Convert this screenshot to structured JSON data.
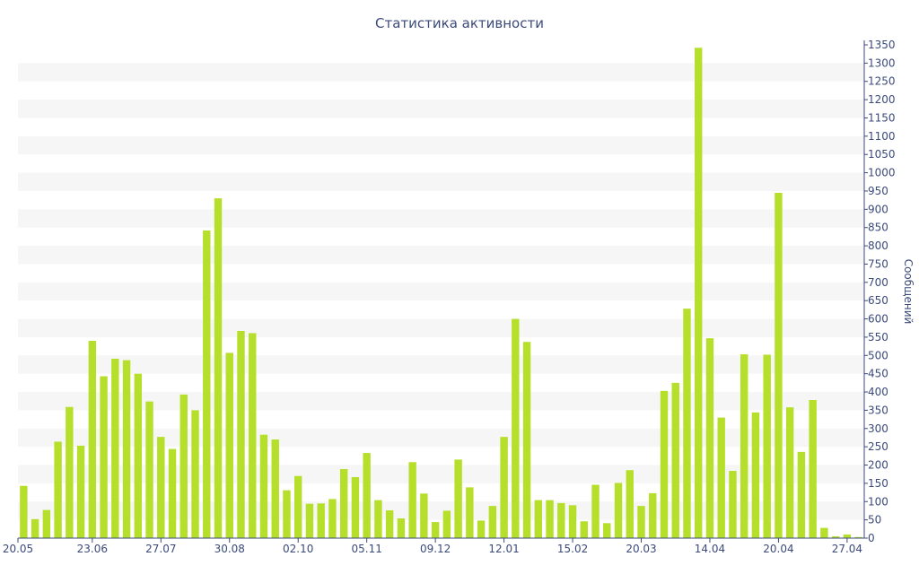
{
  "chart_data": {
    "type": "bar",
    "title": "Статистика активности",
    "xlabel": "",
    "ylabel": "Сообщений",
    "ylim": [
      0,
      1350
    ],
    "ytick_step": 50,
    "y_axis_side": "right",
    "x_tick_labels": [
      {
        "index": 0,
        "label": "20.05"
      },
      {
        "index": 6,
        "label": "23.06"
      },
      {
        "index": 12,
        "label": "27.07"
      },
      {
        "index": 18,
        "label": "30.08"
      },
      {
        "index": 24,
        "label": "02.10"
      },
      {
        "index": 30,
        "label": "05.11"
      },
      {
        "index": 36,
        "label": "09.12"
      },
      {
        "index": 42,
        "label": "12.01"
      },
      {
        "index": 48,
        "label": "15.02"
      },
      {
        "index": 54,
        "label": "20.03"
      },
      {
        "index": 60,
        "label": "14.04"
      },
      {
        "index": 66,
        "label": "20.04"
      },
      {
        "index": 72,
        "label": "27.04"
      }
    ],
    "values": [
      143,
      52,
      77,
      264,
      359,
      253,
      540,
      443,
      491,
      487,
      450,
      374,
      277,
      244,
      393,
      350,
      842,
      930,
      507,
      567,
      561,
      283,
      270,
      131,
      170,
      94,
      95,
      107,
      189,
      167,
      233,
      104,
      76,
      54,
      208,
      122,
      44,
      75,
      215,
      139,
      48,
      88,
      277,
      600,
      537,
      104,
      104,
      96,
      90,
      46,
      146,
      41,
      151,
      186,
      88,
      123,
      403,
      425,
      628,
      1342,
      547,
      330,
      184,
      503,
      344,
      502,
      945,
      358,
      236,
      378,
      28,
      5,
      10,
      3
    ],
    "colors": {
      "bar": "#b5df2a",
      "text": "#3b4a7a",
      "axis": "#3b4a7a",
      "stripe": "#f6f6f6"
    },
    "grid": "alternating-bands"
  }
}
